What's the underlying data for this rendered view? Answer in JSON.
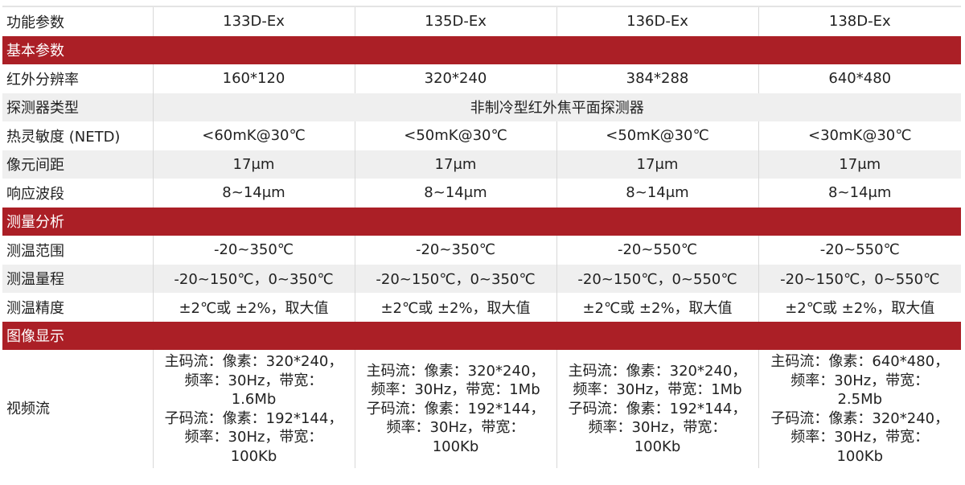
{
  "header": {
    "label": "功能参数",
    "models": [
      "133D-Ex",
      "135D-Ex",
      "136D-Ex",
      "138D-Ex"
    ]
  },
  "sections": [
    {
      "title": "基本参数",
      "rows": [
        {
          "label": "红外分辨率",
          "values": [
            "160*120",
            "320*240",
            "384*288",
            "640*480"
          ],
          "shade": "white"
        },
        {
          "label": "探测器类型",
          "merged": "非制冷型红外焦平面探测器",
          "shade": "gray"
        },
        {
          "label": "热灵敏度 (NETD)",
          "values": [
            "<60mK@30℃",
            "<50mK@30℃",
            "<50mK@30℃",
            "<30mK@30℃"
          ],
          "shade": "white"
        },
        {
          "label": "像元间距",
          "values": [
            "17μm",
            "17μm",
            "17μm",
            "17μm"
          ],
          "shade": "gray"
        },
        {
          "label": "响应波段",
          "values": [
            "8~14μm",
            "8~14μm",
            "8~14μm",
            "8~14μm"
          ],
          "shade": "white"
        }
      ]
    },
    {
      "title": "测量分析",
      "rows": [
        {
          "label": "测温范围",
          "values": [
            "-20~350℃",
            "-20~350℃",
            "-20~550℃",
            "-20~550℃"
          ],
          "shade": "white"
        },
        {
          "label": "测温量程",
          "values": [
            "-20~150℃，0~350℃",
            "-20~150℃，0~350℃",
            "-20~150℃，0~550℃",
            "-20~150℃，0~550℃"
          ],
          "shade": "gray"
        },
        {
          "label": "测温精度",
          "values": [
            "±2℃或 ±2%，取大值",
            "±2℃或 ±2%，取大值",
            "±2℃或 ±2%，取大值",
            "±2℃或 ±2%，取大值"
          ],
          "shade": "white"
        }
      ]
    },
    {
      "title": "图像显示",
      "rows": [
        {
          "label": "视频流",
          "video": true,
          "shade": "white",
          "lines": [
            [
              "主码流：像素：320*240，",
              "频率：30Hz，带宽：",
              "1.6Mb",
              "子码流：像素：192*144，",
              "频率：30Hz，带宽：",
              "100Kb"
            ],
            [
              "主码流：像素：320*240，",
              "频率：30Hz，带宽：1Mb",
              "子码流：像素：192*144，",
              "频率：30Hz，带宽：",
              "100Kb"
            ],
            [
              "主码流：像素：320*240，",
              "频率：30Hz，带宽：1Mb",
              "子码流：像素：192*144，",
              "频率：30Hz，带宽：",
              "100Kb"
            ],
            [
              "主码流：像素：640*480，",
              "频率：30Hz，带宽：",
              "2.5Mb",
              "子码流：像素：320*240，",
              "频率：30Hz，带宽：",
              "100Kb"
            ]
          ]
        }
      ]
    }
  ],
  "colors": {
    "section_bg": "#ab1f26",
    "stripe": "#efefef"
  }
}
